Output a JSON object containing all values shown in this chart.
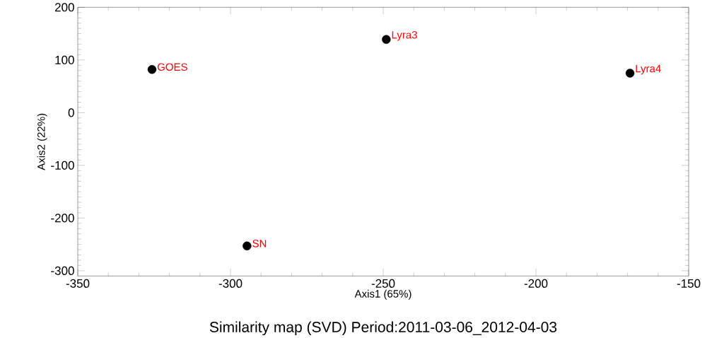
{
  "chart_data": {
    "type": "scatter",
    "title": "Similarity map (SVD) Period:2011-03-06_2012-04-03",
    "xlabel": "Axis1 (65%)",
    "ylabel": "Axis2 (22%)",
    "series": [
      {
        "color": "#000000",
        "x": [
          -325.7,
          -249,
          -169.2,
          -294.6
        ],
        "values": [
          82,
          139,
          75,
          -253
        ]
      }
    ],
    "grid": false,
    "annotations": [
      {
        "text": "GOES",
        "x": -325.7,
        "y": 82
      },
      {
        "text": "Lyra3",
        "x": -249,
        "y": 139
      },
      {
        "text": "Lyra4",
        "x": -169.2,
        "y": 75
      },
      {
        "text": "SN",
        "x": -294.6,
        "y": -253
      }
    ],
    "xlim": [
      -350,
      -150
    ],
    "xticks": [
      -350,
      -300,
      -250,
      -200,
      -150
    ],
    "ylim": [
      -310,
      200
    ],
    "yticks": [
      -300,
      -200,
      -100,
      0,
      100,
      200
    ]
  }
}
